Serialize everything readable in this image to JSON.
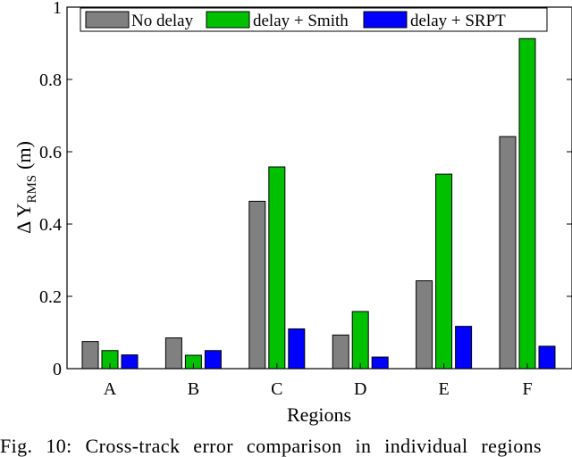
{
  "chart_data": {
    "type": "bar",
    "title": "",
    "xlabel": "Regions",
    "ylabel": {
      "prefix": "Δ Y",
      "subscript": "RMS",
      "unit": "(m)"
    },
    "categories": [
      "A",
      "B",
      "C",
      "D",
      "E",
      "F"
    ],
    "ylim": [
      0,
      1
    ],
    "yticks": [
      0,
      0.2,
      0.4,
      0.6,
      0.8,
      1
    ],
    "ytick_labels": [
      "0",
      "0.2",
      "0.4",
      "0.6",
      "0.8",
      "1"
    ],
    "grid": false,
    "legend_position": "top",
    "series": [
      {
        "name": "No delay",
        "color": "#808080",
        "values": [
          0.075,
          0.085,
          0.463,
          0.093,
          0.243,
          0.642
        ]
      },
      {
        "name": "delay + Smith",
        "color": "#00c000",
        "values": [
          0.05,
          0.037,
          0.558,
          0.158,
          0.538,
          0.913
        ]
      },
      {
        "name": "delay + SRPT",
        "color": "#0000ff",
        "values": [
          0.038,
          0.05,
          0.11,
          0.032,
          0.117,
          0.062
        ]
      }
    ]
  },
  "caption": "Fig. 10: Cross-track error comparison in individual regions"
}
